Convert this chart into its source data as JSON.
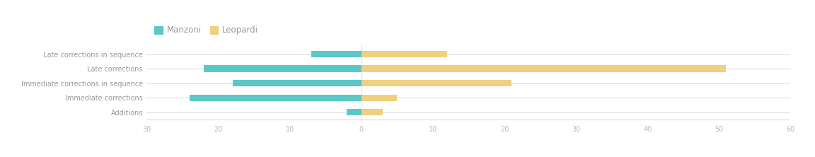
{
  "categories": [
    "Late corrections in sequence",
    "Late corrections",
    "Immediate corrections in sequence",
    "Immediate corrections",
    "Additions"
  ],
  "manzoni_values": [
    -7,
    -22,
    -18,
    -24,
    -2
  ],
  "leopardi_values": [
    12,
    51,
    21,
    5,
    3
  ],
  "manzoni_color": "#5BC8C8",
  "leopardi_color": "#F0D080",
  "background_color": "#ffffff",
  "grid_color": "#dddddd",
  "label_color": "#999999",
  "tick_label_color": "#bbbbbb",
  "xlim": [
    -30,
    60
  ],
  "xticks": [
    -30,
    -20,
    -10,
    0,
    10,
    20,
    30,
    40,
    50,
    60
  ],
  "xtick_labels": [
    "30",
    "20",
    "10",
    "0",
    "10",
    "20",
    "30",
    "40",
    "50",
    "60"
  ],
  "legend_labels": [
    "Manzoni",
    "Leopardi"
  ],
  "bar_height": 0.45,
  "figsize": [
    11.52,
    2.22
  ],
  "dpi": 100
}
